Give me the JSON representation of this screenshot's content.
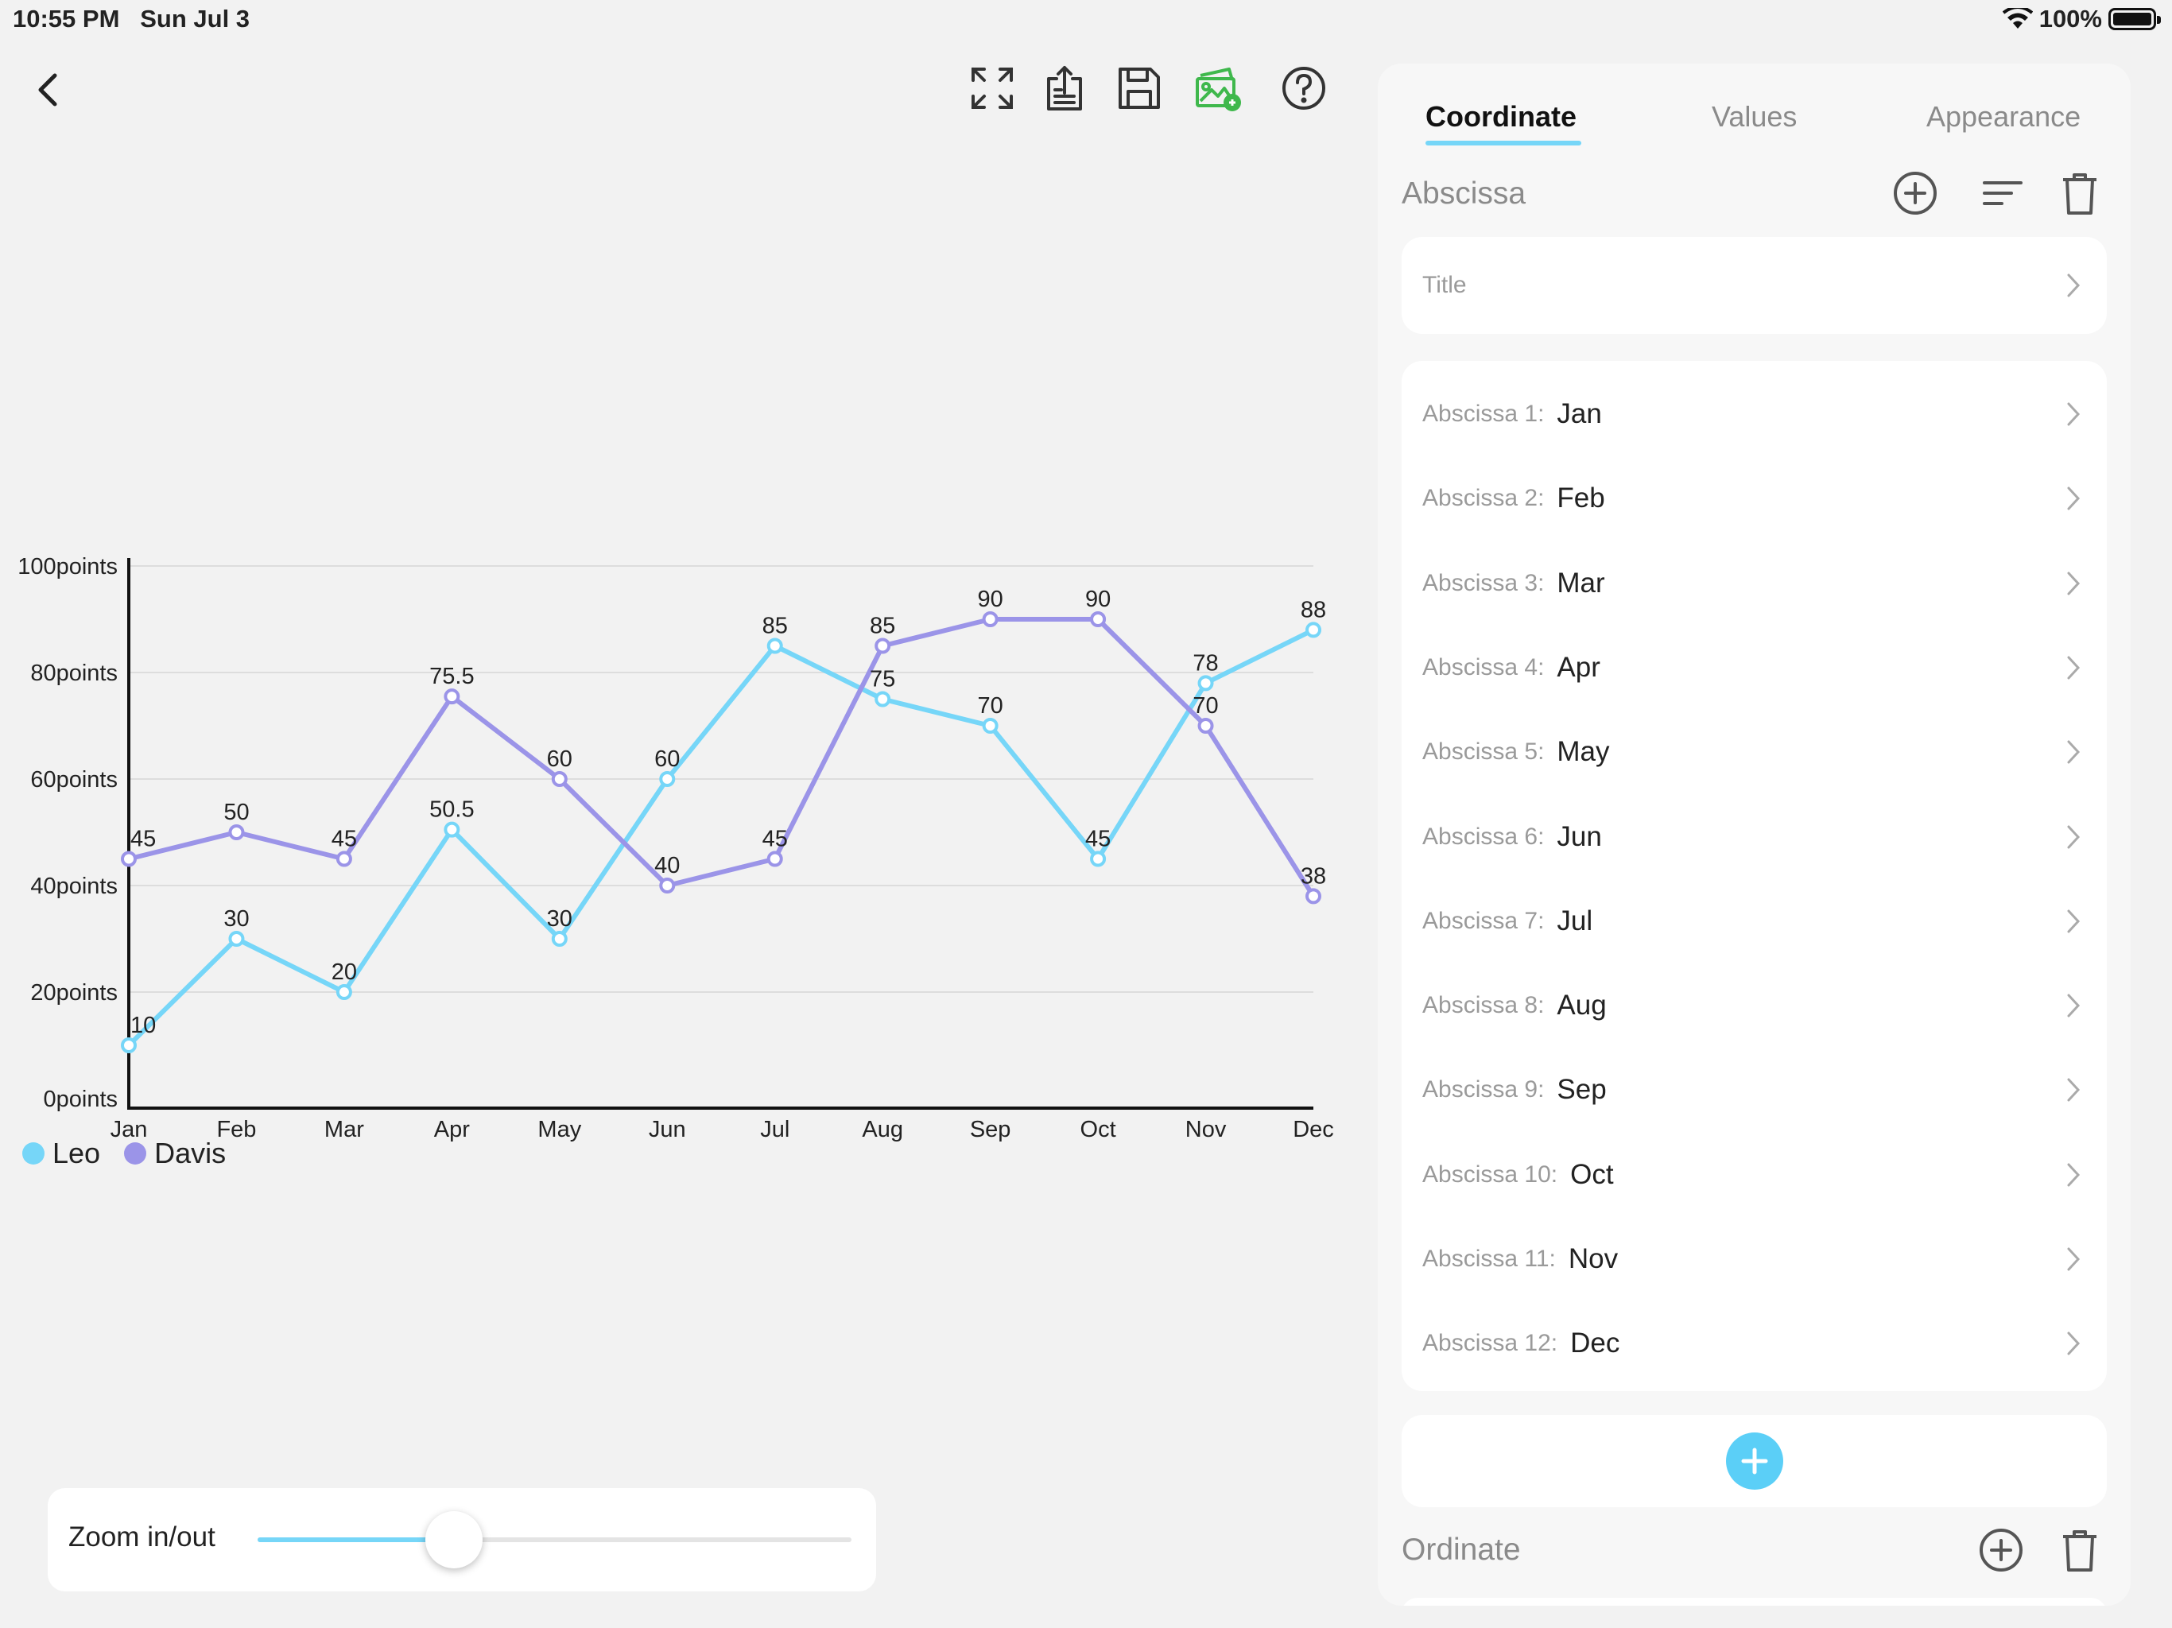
{
  "status_bar": {
    "time_date": "10:55 PM   Sun Jul 3",
    "battery": "100%"
  },
  "toolbar": {
    "icons": [
      "back-chevron-icon",
      "fullscreen-icon",
      "export-icon",
      "save-icon",
      "image-export-icon",
      "help-icon"
    ]
  },
  "colors": {
    "leo": "#76d6f8",
    "davis": "#9b94e8",
    "accent": "#5bcff7",
    "image_icon": "#3fb84c"
  },
  "chart_data": {
    "type": "line",
    "categories": [
      "Jan",
      "Feb",
      "Mar",
      "Apr",
      "May",
      "Jun",
      "Jul",
      "Aug",
      "Sep",
      "Oct",
      "Nov",
      "Dec"
    ],
    "y_tick_labels": [
      "0points",
      "20points",
      "40points",
      "60points",
      "80points",
      "100points"
    ],
    "ylim": [
      0,
      100
    ],
    "grid": true,
    "legend_position": "bottom-left",
    "series": [
      {
        "name": "Leo",
        "values": [
          10,
          30,
          20,
          50.5,
          30,
          60,
          85,
          75,
          70,
          45,
          78,
          88
        ]
      },
      {
        "name": "Davis",
        "values": [
          45,
          50,
          45,
          75.5,
          60,
          40,
          45,
          85,
          90,
          90,
          70,
          38
        ]
      }
    ]
  },
  "zoom": {
    "label": "Zoom in/out",
    "level": 0.33
  },
  "panel": {
    "tabs": [
      {
        "label": "Coordinate",
        "active": true
      },
      {
        "label": "Values",
        "active": false
      },
      {
        "label": "Appearance",
        "active": false
      }
    ],
    "abscissa": {
      "section_label": "Abscissa",
      "title_row_label": "Title",
      "rows": [
        {
          "key": "Abscissa 1:",
          "value": "Jan"
        },
        {
          "key": "Abscissa 2:",
          "value": "Feb"
        },
        {
          "key": "Abscissa 3:",
          "value": "Mar"
        },
        {
          "key": "Abscissa 4:",
          "value": "Apr"
        },
        {
          "key": "Abscissa 5:",
          "value": "May"
        },
        {
          "key": "Abscissa 6:",
          "value": "Jun"
        },
        {
          "key": "Abscissa 7:",
          "value": "Jul"
        },
        {
          "key": "Abscissa 8:",
          "value": "Aug"
        },
        {
          "key": "Abscissa 9:",
          "value": "Sep"
        },
        {
          "key": "Abscissa 10:",
          "value": "Oct"
        },
        {
          "key": "Abscissa 11:",
          "value": "Nov"
        },
        {
          "key": "Abscissa 12:",
          "value": "Dec"
        }
      ]
    },
    "ordinate": {
      "section_label": "Ordinate"
    }
  }
}
